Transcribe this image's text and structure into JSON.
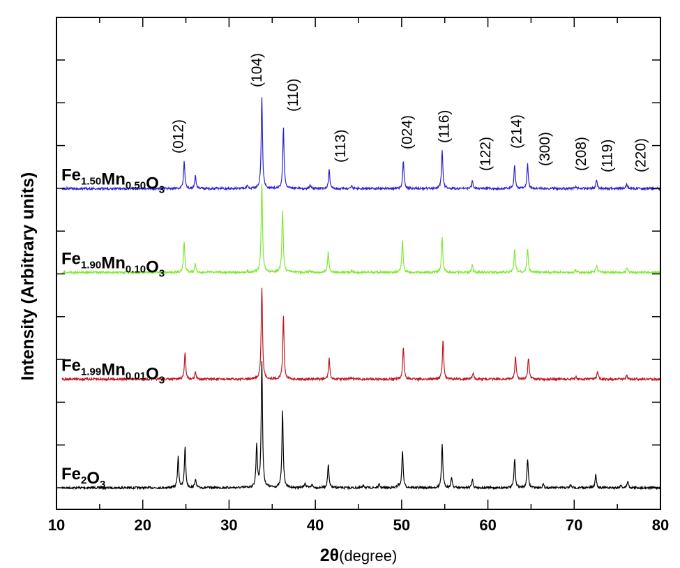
{
  "chart_data": {
    "type": "line",
    "title": "",
    "xlabel": "2θ(degree)",
    "ylabel": "Intensity (Arbitrary units)",
    "xlim": [
      10,
      80
    ],
    "x_ticks": [
      10,
      20,
      30,
      40,
      50,
      60,
      70,
      80
    ],
    "x_minor_ticks": [
      15,
      25,
      35,
      45,
      55,
      65,
      75
    ],
    "y_tick_labels_shown": false,
    "grid": false,
    "legend": "inline labels next to each trace",
    "hkl_labels": [
      {
        "label": "(012)",
        "x": 24.1
      },
      {
        "label": "(104)",
        "x": 33.2
      },
      {
        "label": "(110)",
        "x": 37.4
      },
      {
        "label": "(113)",
        "x": 42.9
      },
      {
        "label": "(024)",
        "x": 50.6
      },
      {
        "label": "(116)",
        "x": 54.9
      },
      {
        "label": "(122)",
        "x": 59.7
      },
      {
        "label": "(214)",
        "x": 63.3
      },
      {
        "label": "(300)",
        "x": 66.6
      },
      {
        "label": "(208)",
        "x": 70.8
      },
      {
        "label": "(119)",
        "x": 73.8
      },
      {
        "label": "(220)",
        "x": 77.7
      }
    ],
    "series": [
      {
        "name": "Fe2O3",
        "label_parts": [
          [
            "Fe",
            ""
          ],
          [
            "2",
            "sub"
          ],
          [
            "O",
            ""
          ],
          [
            "3",
            "sub"
          ]
        ],
        "color": "#000000",
        "offset": 0,
        "peaks": [
          {
            "x": 24.1,
            "h": 0.36
          },
          {
            "x": 24.9,
            "h": 0.48
          },
          {
            "x": 26.1,
            "h": 0.1
          },
          {
            "x": 33.2,
            "h": 0.5
          },
          {
            "x": 33.8,
            "h": 1.48
          },
          {
            "x": 36.2,
            "h": 0.9
          },
          {
            "x": 38.8,
            "h": 0.06
          },
          {
            "x": 39.6,
            "h": 0.04
          },
          {
            "x": 41.5,
            "h": 0.27
          },
          {
            "x": 45.6,
            "h": 0.03
          },
          {
            "x": 47.4,
            "h": 0.04
          },
          {
            "x": 49.6,
            "h": 0.03
          },
          {
            "x": 50.1,
            "h": 0.44
          },
          {
            "x": 54.7,
            "h": 0.5
          },
          {
            "x": 55.8,
            "h": 0.12
          },
          {
            "x": 58.2,
            "h": 0.1
          },
          {
            "x": 63.1,
            "h": 0.34
          },
          {
            "x": 64.6,
            "h": 0.34
          },
          {
            "x": 66.4,
            "h": 0.04
          },
          {
            "x": 69.6,
            "h": 0.03
          },
          {
            "x": 72.5,
            "h": 0.16
          },
          {
            "x": 75.4,
            "h": 0.03
          },
          {
            "x": 76.2,
            "h": 0.08
          }
        ]
      },
      {
        "name": "Fe1.99Mn0.01O3",
        "label_parts": [
          [
            "Fe",
            ""
          ],
          [
            "1.99",
            "sub"
          ],
          [
            "Mn",
            ""
          ],
          [
            "0.01",
            "sub"
          ],
          [
            "O",
            ""
          ],
          [
            "3",
            "sub"
          ]
        ],
        "color": "#c0141e",
        "offset": 1.27,
        "peaks": [
          {
            "x": 24.9,
            "h": 0.32
          },
          {
            "x": 26.1,
            "h": 0.08
          },
          {
            "x": 33.8,
            "h": 1.08
          },
          {
            "x": 36.3,
            "h": 0.74
          },
          {
            "x": 41.6,
            "h": 0.24
          },
          {
            "x": 44.2,
            "h": 0.02
          },
          {
            "x": 50.2,
            "h": 0.38
          },
          {
            "x": 54.8,
            "h": 0.46
          },
          {
            "x": 58.3,
            "h": 0.08
          },
          {
            "x": 63.2,
            "h": 0.27
          },
          {
            "x": 64.7,
            "h": 0.25
          },
          {
            "x": 70.2,
            "h": 0.03
          },
          {
            "x": 72.7,
            "h": 0.1
          },
          {
            "x": 76.1,
            "h": 0.05
          }
        ]
      },
      {
        "name": "Fe1.90Mn0.10O3",
        "label_parts": [
          [
            "Fe",
            ""
          ],
          [
            "1.90",
            "sub"
          ],
          [
            "Mn",
            ""
          ],
          [
            "0.10",
            "sub"
          ],
          [
            "O",
            ""
          ],
          [
            "3",
            "sub"
          ]
        ],
        "color": "#7fe830",
        "offset": 2.52,
        "peaks": [
          {
            "x": 24.8,
            "h": 0.36
          },
          {
            "x": 26.1,
            "h": 0.1
          },
          {
            "x": 32.1,
            "h": 0.02
          },
          {
            "x": 33.8,
            "h": 1.05
          },
          {
            "x": 36.2,
            "h": 0.74
          },
          {
            "x": 39.4,
            "h": 0.02
          },
          {
            "x": 41.5,
            "h": 0.24
          },
          {
            "x": 44.2,
            "h": 0.02
          },
          {
            "x": 50.1,
            "h": 0.37
          },
          {
            "x": 54.7,
            "h": 0.41
          },
          {
            "x": 58.2,
            "h": 0.09
          },
          {
            "x": 63.1,
            "h": 0.28
          },
          {
            "x": 64.6,
            "h": 0.28
          },
          {
            "x": 70.2,
            "h": 0.03
          },
          {
            "x": 72.6,
            "h": 0.09
          },
          {
            "x": 76.1,
            "h": 0.05
          }
        ]
      },
      {
        "name": "Fe1.50Mn0.50O3",
        "label_parts": [
          [
            "Fe",
            ""
          ],
          [
            "1.50",
            "sub"
          ],
          [
            "Mn",
            ""
          ],
          [
            "0.50",
            "sub"
          ],
          [
            "O",
            ""
          ],
          [
            "3",
            "sub"
          ]
        ],
        "color": "#2a1fd0",
        "offset": 3.5,
        "peaks": [
          {
            "x": 24.8,
            "h": 0.32
          },
          {
            "x": 26.1,
            "h": 0.15
          },
          {
            "x": 32.1,
            "h": 0.03
          },
          {
            "x": 33.8,
            "h": 1.06
          },
          {
            "x": 36.3,
            "h": 0.71
          },
          {
            "x": 39.4,
            "h": 0.04
          },
          {
            "x": 41.6,
            "h": 0.22
          },
          {
            "x": 44.2,
            "h": 0.03
          },
          {
            "x": 50.2,
            "h": 0.33
          },
          {
            "x": 54.7,
            "h": 0.45
          },
          {
            "x": 58.2,
            "h": 0.09
          },
          {
            "x": 63.1,
            "h": 0.28
          },
          {
            "x": 64.6,
            "h": 0.29
          },
          {
            "x": 70.2,
            "h": 0.03
          },
          {
            "x": 72.6,
            "h": 0.1
          },
          {
            "x": 76.1,
            "h": 0.05
          }
        ]
      }
    ]
  },
  "axes": {
    "x_title_main": "2θ",
    "x_title_paren": "(degree)",
    "y_title": "Intensity (Arbitrary units)"
  }
}
